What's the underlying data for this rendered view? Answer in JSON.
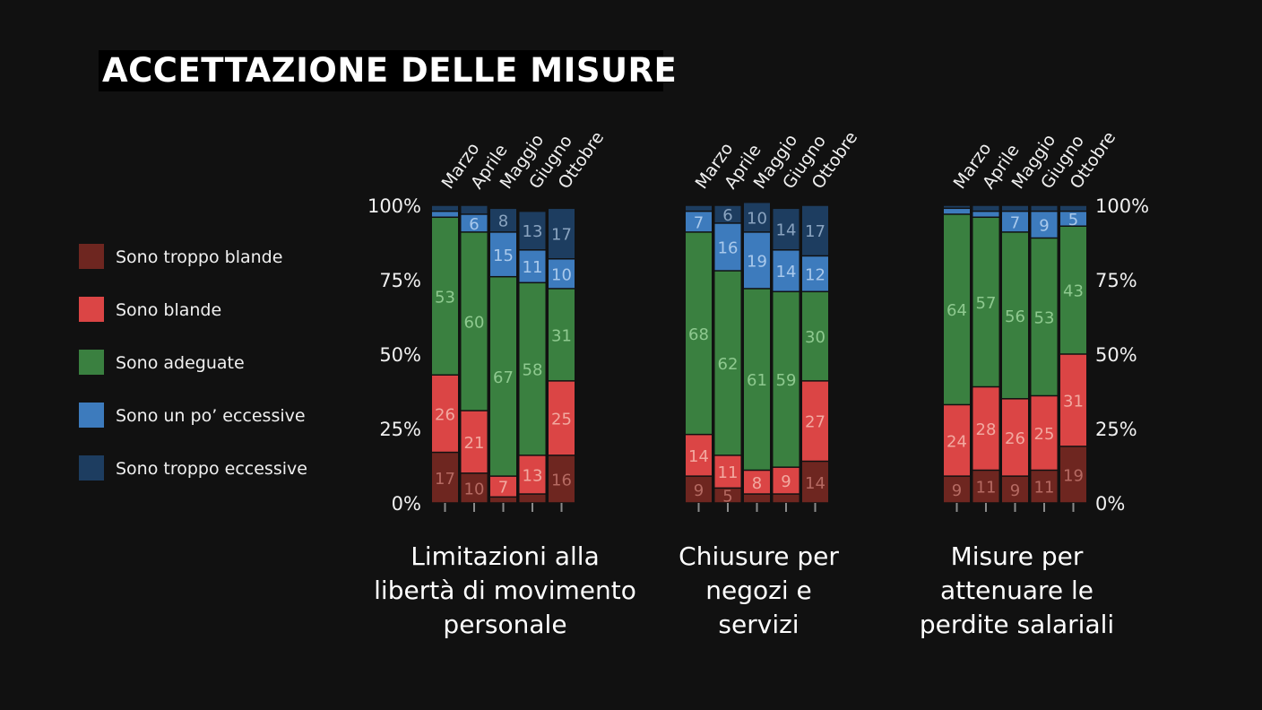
{
  "title": "ACCETTAZIONE DELLE MISURE",
  "legend": [
    {
      "label": "Sono troppo blande",
      "color": "#6e2620"
    },
    {
      "label": "Sono blande",
      "color": "#db4545"
    },
    {
      "label": "Sono adeguate",
      "color": "#3a8040"
    },
    {
      "label": "Sono un po’ eccessive",
      "color": "#3d7bbd"
    },
    {
      "label": "Sono troppo eccessive",
      "color": "#1d3d60"
    }
  ],
  "chart_data": {
    "type": "bar",
    "stacked": true,
    "categories": [
      "Marzo",
      "Aprile",
      "Maggio",
      "Giugno",
      "Ottobre"
    ],
    "y_ticks": [
      "0%",
      "25%",
      "50%",
      "75%",
      "100%"
    ],
    "ylim": [
      0,
      100
    ],
    "panels": [
      {
        "title": [
          "Limitazioni alla",
          "libertà di movimento",
          "personale"
        ],
        "series": [
          {
            "name": "Sono troppo blande",
            "values": [
              17,
              10,
              2,
              3,
              16
            ],
            "labels": [
              "17",
              "10",
              "",
              "",
              "16"
            ]
          },
          {
            "name": "Sono blande",
            "values": [
              26,
              21,
              7,
              13,
              25
            ],
            "labels": [
              "26",
              "21",
              "7",
              "13",
              "25"
            ]
          },
          {
            "name": "Sono adeguate",
            "values": [
              53,
              60,
              67,
              58,
              31
            ],
            "labels": [
              "53",
              "60",
              "67",
              "58",
              "31"
            ]
          },
          {
            "name": "Sono un po’ eccessive",
            "values": [
              2,
              6,
              15,
              11,
              10
            ],
            "labels": [
              "",
              "6",
              "15",
              "11",
              "10"
            ]
          },
          {
            "name": "Sono troppo eccessive",
            "values": [
              2,
              3,
              8,
              13,
              17
            ],
            "labels": [
              "",
              "",
              "8",
              "13",
              "17"
            ]
          }
        ]
      },
      {
        "title": [
          "Chiusure per",
          "negozi e",
          "servizi"
        ],
        "series": [
          {
            "name": "Sono troppo blande",
            "values": [
              9,
              5,
              3,
              3,
              14
            ],
            "labels": [
              "9",
              "5",
              "",
              "",
              "14"
            ]
          },
          {
            "name": "Sono blande",
            "values": [
              14,
              11,
              8,
              9,
              27
            ],
            "labels": [
              "14",
              "11",
              "8",
              "9",
              "27"
            ]
          },
          {
            "name": "Sono adeguate",
            "values": [
              68,
              62,
              61,
              59,
              30
            ],
            "labels": [
              "68",
              "62",
              "61",
              "59",
              "30"
            ]
          },
          {
            "name": "Sono un po’ eccessive",
            "values": [
              7,
              16,
              19,
              14,
              12
            ],
            "labels": [
              "7",
              "16",
              "19",
              "14",
              "12"
            ]
          },
          {
            "name": "Sono troppo eccessive",
            "values": [
              2,
              6,
              10,
              14,
              17
            ],
            "labels": [
              "",
              "6",
              "10",
              "14",
              "17"
            ]
          }
        ]
      },
      {
        "title": [
          "Misure per",
          "attenuare le",
          "perdite salariali"
        ],
        "series": [
          {
            "name": "Sono troppo blande",
            "values": [
              9,
              11,
              9,
              11,
              19
            ],
            "labels": [
              "9",
              "11",
              "9",
              "11",
              "19"
            ]
          },
          {
            "name": "Sono blande",
            "values": [
              24,
              28,
              26,
              25,
              31
            ],
            "labels": [
              "24",
              "28",
              "26",
              "25",
              "31"
            ]
          },
          {
            "name": "Sono adeguate",
            "values": [
              64,
              57,
              56,
              53,
              43
            ],
            "labels": [
              "64",
              "57",
              "56",
              "53",
              "43"
            ]
          },
          {
            "name": "Sono un po’ eccessive",
            "values": [
              2,
              2,
              7,
              9,
              5
            ],
            "labels": [
              "",
              "",
              "7",
              "9",
              "5"
            ]
          },
          {
            "name": "Sono troppo eccessive",
            "values": [
              1,
              2,
              2,
              2,
              2
            ],
            "labels": [
              "",
              "",
              "",
              "",
              ""
            ]
          }
        ]
      }
    ]
  }
}
